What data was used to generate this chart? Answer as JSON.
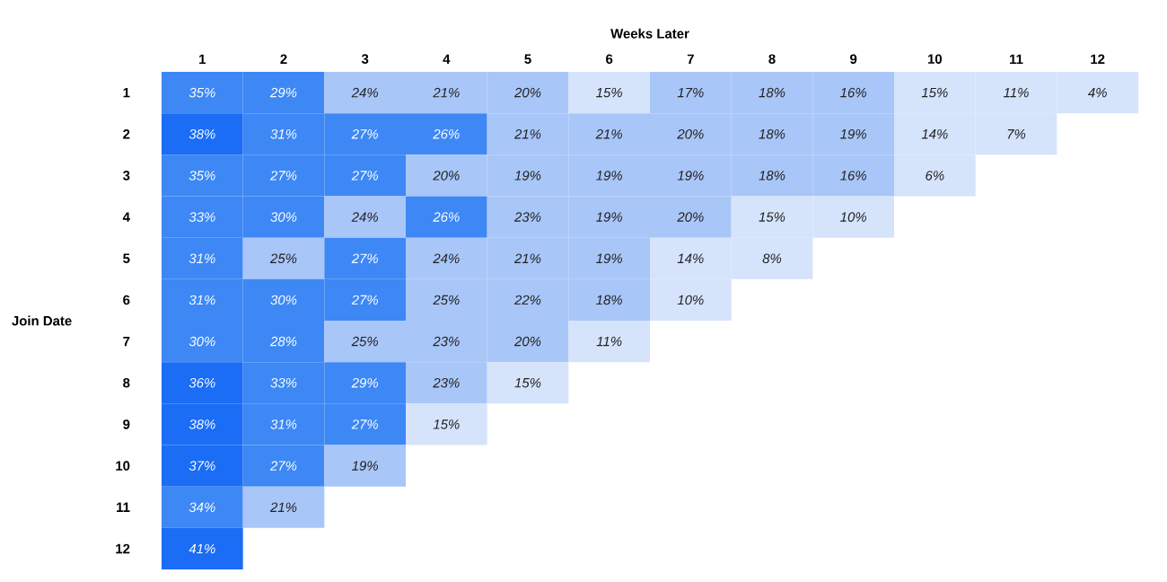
{
  "chart_data": {
    "type": "heatmap",
    "xlabel": "Weeks Later",
    "ylabel": "Join Date",
    "categories": [
      "1",
      "2",
      "3",
      "4",
      "5",
      "6",
      "7",
      "8",
      "9",
      "10",
      "11",
      "12"
    ],
    "y_categories": [
      "1",
      "2",
      "3",
      "4",
      "5",
      "6",
      "7",
      "8",
      "9",
      "10",
      "11",
      "12"
    ],
    "cells": [
      [
        35,
        29,
        24,
        21,
        20,
        15,
        17,
        18,
        16,
        15,
        11,
        4
      ],
      [
        38,
        31,
        27,
        26,
        21,
        21,
        20,
        18,
        19,
        14,
        7,
        null
      ],
      [
        35,
        27,
        27,
        20,
        19,
        19,
        19,
        18,
        16,
        6,
        null,
        null
      ],
      [
        33,
        30,
        24,
        26,
        23,
        19,
        20,
        15,
        10,
        null,
        null,
        null
      ],
      [
        31,
        25,
        27,
        24,
        21,
        19,
        14,
        8,
        null,
        null,
        null,
        null
      ],
      [
        31,
        30,
        27,
        25,
        22,
        18,
        10,
        null,
        null,
        null,
        null,
        null
      ],
      [
        30,
        28,
        25,
        23,
        20,
        11,
        null,
        null,
        null,
        null,
        null,
        null
      ],
      [
        36,
        33,
        29,
        23,
        15,
        null,
        null,
        null,
        null,
        null,
        null,
        null
      ],
      [
        38,
        31,
        27,
        15,
        null,
        null,
        null,
        null,
        null,
        null,
        null,
        null
      ],
      [
        37,
        27,
        19,
        null,
        null,
        null,
        null,
        null,
        null,
        null,
        null,
        null
      ],
      [
        34,
        21,
        null,
        null,
        null,
        null,
        null,
        null,
        null,
        null,
        null,
        null
      ],
      [
        41,
        null,
        null,
        null,
        null,
        null,
        null,
        null,
        null,
        null,
        null,
        null
      ]
    ],
    "cell_labels": [
      [
        "35%",
        "29%",
        "24%",
        "21%",
        "20%",
        "15%",
        "17%",
        "18%",
        "16%",
        "15%",
        "11%",
        "4%"
      ],
      [
        "38%",
        "31%",
        "27%",
        "26%",
        "21%",
        "21%",
        "20%",
        "18%",
        "19%",
        "14%",
        "7%",
        null
      ],
      [
        "35%",
        "27%",
        "27%",
        "20%",
        "19%",
        "19%",
        "19%",
        "18%",
        "16%",
        "6%",
        null,
        null
      ],
      [
        "33%",
        "30%",
        "24%",
        "26%",
        "23%",
        "19%",
        "20%",
        "15%",
        "10%",
        null,
        null,
        null
      ],
      [
        "31%",
        "25%",
        "27%",
        "24%",
        "21%",
        "19%",
        "14%",
        "8%",
        null,
        null,
        null,
        null
      ],
      [
        "31%",
        "30%",
        "27%",
        "25%",
        "22%",
        "18%",
        "10%",
        null,
        null,
        null,
        null,
        null
      ],
      [
        "30%",
        "28%",
        "25%",
        "23%",
        "20%",
        "11%",
        null,
        null,
        null,
        null,
        null,
        null
      ],
      [
        "36%",
        "33%",
        "29%",
        "23%",
        "15%",
        null,
        null,
        null,
        null,
        null,
        null,
        null
      ],
      [
        "38%",
        "31%",
        "27%",
        "15%",
        null,
        null,
        null,
        null,
        null,
        null,
        null,
        null
      ],
      [
        "37%",
        "27%",
        "19%",
        null,
        null,
        null,
        null,
        null,
        null,
        null,
        null,
        null
      ],
      [
        "34%",
        "21%",
        null,
        null,
        null,
        null,
        null,
        null,
        null,
        null,
        null,
        null
      ],
      [
        "41%",
        null,
        null,
        null,
        null,
        null,
        null,
        null,
        null,
        null,
        null,
        null
      ]
    ]
  }
}
